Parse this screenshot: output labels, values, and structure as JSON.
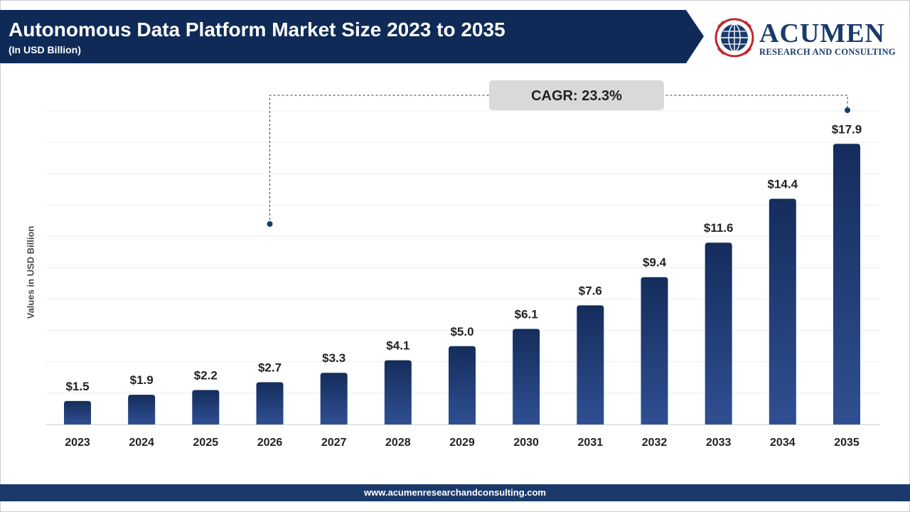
{
  "header": {
    "title": "Autonomous Data Platform Market Size 2023 to 2035",
    "subtitle": "(In USD Billion)"
  },
  "logo": {
    "name": "ACUMEN",
    "tagline": "RESEARCH AND CONSULTING",
    "icon": "globe-emblem-icon"
  },
  "footer": {
    "url": "www.acumenresearchandconsulting.com"
  },
  "colors": {
    "banner": "#0f2a57",
    "bar_top": "#142d5c",
    "bar_bottom": "#2f4f92",
    "footer": "#1b3a6b",
    "cagr_box": "#d9d9d9"
  },
  "chart_data": {
    "type": "bar",
    "title": "Autonomous Data Platform Market Size 2023 to 2035",
    "subtitle": "(In USD Billion)",
    "xlabel": "",
    "ylabel": "Values in USD Billion",
    "categories": [
      "2023",
      "2024",
      "2025",
      "2026",
      "2027",
      "2028",
      "2029",
      "2030",
      "2031",
      "2032",
      "2033",
      "2034",
      "2035"
    ],
    "values": [
      1.5,
      1.9,
      2.2,
      2.7,
      3.3,
      4.1,
      5.0,
      6.1,
      7.6,
      9.4,
      11.6,
      14.4,
      17.9
    ],
    "data_labels": [
      "$1.5",
      "$1.9",
      "$2.2",
      "$2.7",
      "$3.3",
      "$4.1",
      "$5.0",
      "$6.1",
      "$7.6",
      "$9.4",
      "$11.6",
      "$14.4",
      "$17.9"
    ],
    "ylim": [
      0,
      20
    ],
    "grid": true,
    "legend": "none",
    "annotation": "CAGR: 23.3%"
  }
}
